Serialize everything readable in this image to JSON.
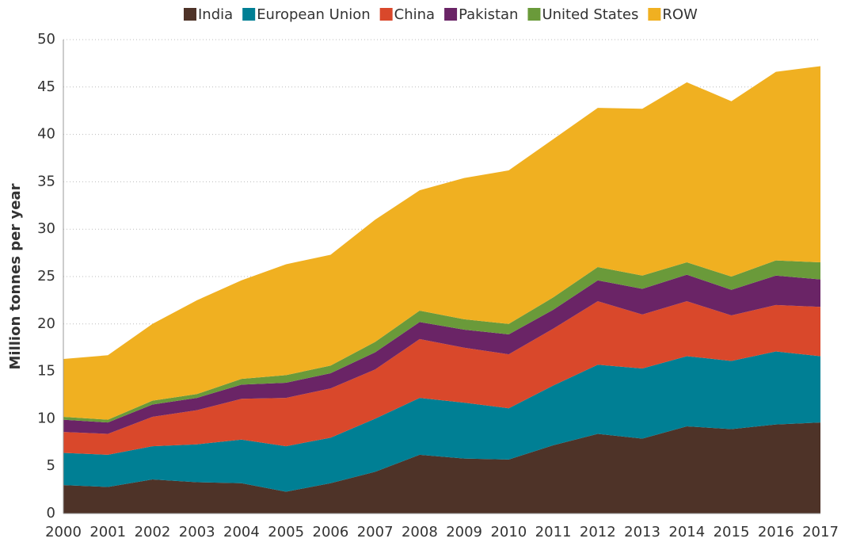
{
  "chart_data": {
    "type": "stacked-area",
    "y_label": "Million tonnes per year",
    "categories": [
      "2000",
      "2001",
      "2002",
      "2003",
      "2004",
      "2005",
      "2006",
      "2007",
      "2008",
      "2009",
      "2010",
      "2011",
      "2012",
      "2013",
      "2014",
      "2015",
      "2016",
      "2017"
    ],
    "series": [
      {
        "name": "India",
        "color": "#4e3328",
        "values": [
          3.0,
          2.8,
          3.6,
          3.3,
          3.2,
          2.3,
          3.2,
          4.4,
          6.2,
          5.8,
          5.7,
          7.2,
          8.4,
          7.9,
          9.2,
          8.9,
          9.4,
          9.6
        ]
      },
      {
        "name": "European Union",
        "color": "#007f94",
        "values": [
          3.4,
          3.4,
          3.5,
          4.0,
          4.6,
          4.8,
          4.8,
          5.6,
          6.0,
          5.9,
          5.4,
          6.3,
          7.3,
          7.4,
          7.4,
          7.2,
          7.7,
          7.0
        ]
      },
      {
        "name": "China",
        "color": "#d9482b",
        "values": [
          2.2,
          2.2,
          3.1,
          3.6,
          4.3,
          5.1,
          5.2,
          5.2,
          6.2,
          5.8,
          5.7,
          6.0,
          6.7,
          5.7,
          5.8,
          4.8,
          4.9,
          5.2
        ]
      },
      {
        "name": "Pakistan",
        "color": "#6a2466",
        "values": [
          1.3,
          1.2,
          1.3,
          1.3,
          1.5,
          1.6,
          1.6,
          1.8,
          1.8,
          1.9,
          2.1,
          2.0,
          2.2,
          2.7,
          2.8,
          2.7,
          3.1,
          2.9
        ]
      },
      {
        "name": "United States",
        "color": "#6a9a3a",
        "values": [
          0.3,
          0.3,
          0.4,
          0.4,
          0.6,
          0.8,
          0.8,
          1.1,
          1.2,
          1.1,
          1.1,
          1.3,
          1.4,
          1.4,
          1.3,
          1.4,
          1.6,
          1.8
        ]
      },
      {
        "name": "ROW",
        "color": "#f0b021",
        "values": [
          6.1,
          6.8,
          8.1,
          9.9,
          10.4,
          11.7,
          11.7,
          12.9,
          12.7,
          14.9,
          16.2,
          16.7,
          16.8,
          17.6,
          19.0,
          18.5,
          19.9,
          20.7
        ]
      }
    ],
    "ylim": [
      0,
      50
    ],
    "yticks": [
      0,
      5,
      10,
      15,
      20,
      25,
      30,
      35,
      40,
      45,
      50
    ],
    "grid": true
  }
}
